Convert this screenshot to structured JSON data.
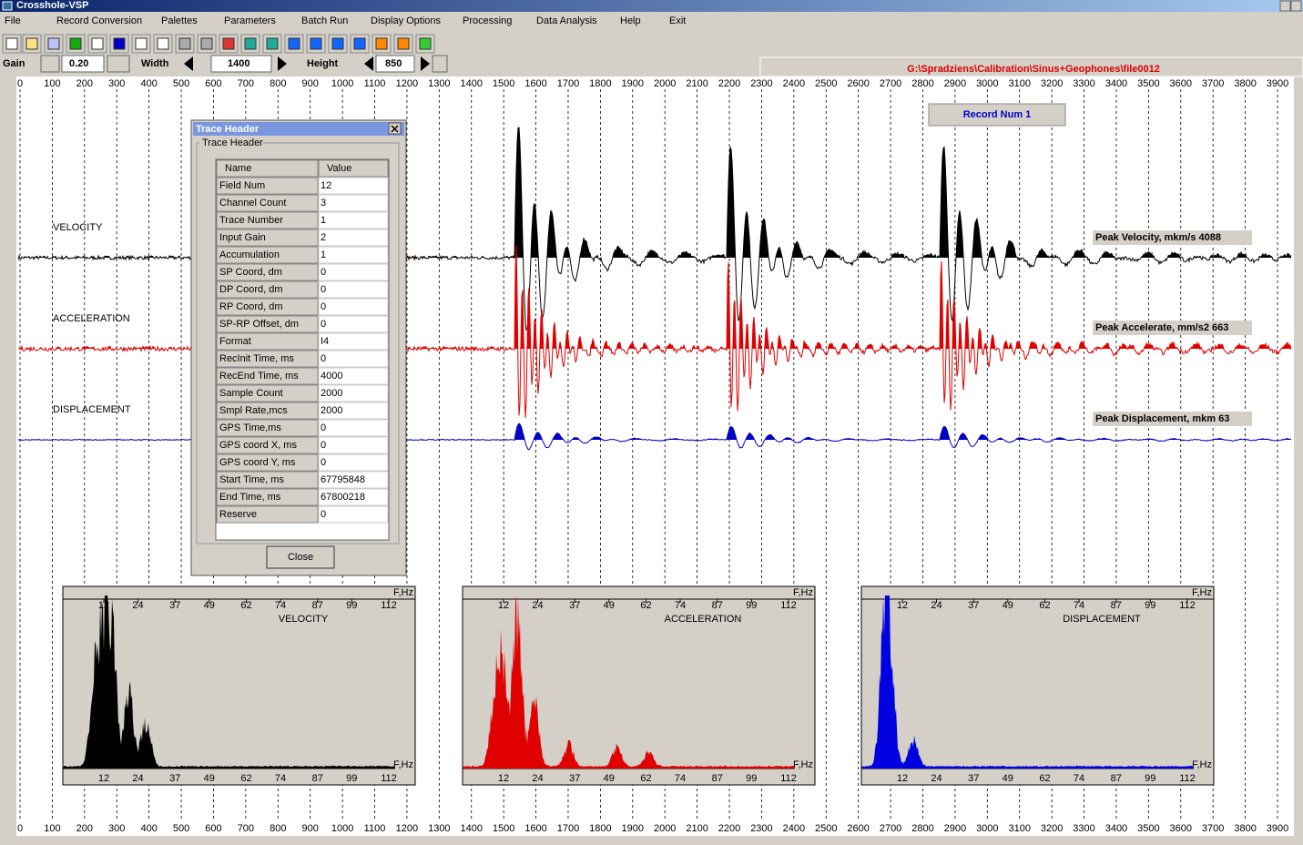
{
  "window": {
    "title": "Crosshole-VSP"
  },
  "menu": [
    "File",
    "Record Conversion",
    "Palettes",
    "Parameters",
    "Batch Run",
    "Display Options",
    "Processing",
    "Data Analysis",
    "Help",
    "Exit"
  ],
  "controls": {
    "gain_label": "Gain",
    "gain_value": "0.20",
    "width_label": "Width",
    "width_value": "1400",
    "height_label": "Height",
    "height_value": "850"
  },
  "file_path": "G:\\Spradziens\\Calibration\\Sinus+Geophones\\file0012",
  "record_label": "Record Num 1",
  "time_axis": [
    0,
    100,
    200,
    300,
    400,
    500,
    600,
    700,
    800,
    900,
    1000,
    1100,
    1200,
    1300,
    1400,
    1500,
    1600,
    1700,
    1800,
    1900,
    2000,
    2100,
    2200,
    2300,
    2400,
    2500,
    2600,
    2700,
    2800,
    2900,
    3000,
    3100,
    3200,
    3300,
    3400,
    3500,
    3600,
    3700,
    3800,
    3900
  ],
  "traces": [
    {
      "label": "VELOCITY",
      "peak": "Peak Velocity, mkm/s  4088"
    },
    {
      "label": "ACCELERATION",
      "peak": "Peak Accelerate, mm/s2  663"
    },
    {
      "label": "DISPLACEMENT",
      "peak": "Peak Displacement, mkm  63"
    }
  ],
  "trace_header": {
    "title": "Trace Header",
    "group": "Trace Header",
    "columns": [
      "Name",
      "Value"
    ],
    "rows": [
      [
        "Field Num",
        12
      ],
      [
        "Channel Count",
        3
      ],
      [
        "Trace Number",
        1
      ],
      [
        "Input Gain",
        2
      ],
      [
        "Accumulation",
        1
      ],
      [
        "SP Coord, dm",
        0
      ],
      [
        "DP Coord, dm",
        0
      ],
      [
        "RP Coord, dm",
        0
      ],
      [
        "SP-RP Offset, dm",
        0
      ],
      [
        "Format",
        "I4"
      ],
      [
        "RecInit Time, ms",
        0
      ],
      [
        "RecEnd Time, ms",
        4000
      ],
      [
        "Sample Count",
        2000
      ],
      [
        "Smpl Rate,mcs",
        2000
      ],
      [
        "GPS Time,ms",
        0
      ],
      [
        "GPS coord X, ms",
        0
      ],
      [
        "GPS coord Y, ms",
        0
      ],
      [
        "Start Time, ms",
        67795848
      ],
      [
        "End Time, ms",
        67800218
      ],
      [
        "Reserve",
        0
      ]
    ],
    "close": "Close"
  },
  "spectra": [
    {
      "label": "VELOCITY"
    },
    {
      "label": "ACCELERATION"
    },
    {
      "label": "DISPLACEMENT"
    }
  ],
  "freq_axis": {
    "ticks": [
      12,
      24,
      37,
      49,
      62,
      74,
      87,
      99,
      112
    ],
    "unit": "F,Hz"
  }
}
